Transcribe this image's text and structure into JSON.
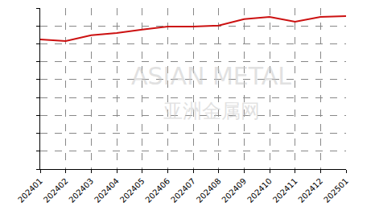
{
  "chart_data": {
    "type": "line",
    "categories": [
      "202401",
      "202402",
      "202403",
      "202404",
      "202405",
      "202406",
      "202407",
      "202408",
      "202409",
      "202410",
      "202411",
      "202412",
      "202501"
    ],
    "values": [
      7.25,
      7.16,
      7.48,
      7.6,
      7.8,
      7.97,
      7.97,
      8.02,
      8.38,
      8.5,
      8.24,
      8.5,
      8.55
    ],
    "color": "#cc1111",
    "ylim": [
      0,
      9
    ],
    "yticks": [
      0,
      1,
      2,
      3,
      4,
      5,
      6,
      7,
      8,
      9
    ],
    "grid": true,
    "tick_labels": "x",
    "annotations": [
      {
        "text": "ASIAN METAL"
      },
      {
        "text": "亚洲金属网"
      }
    ]
  }
}
